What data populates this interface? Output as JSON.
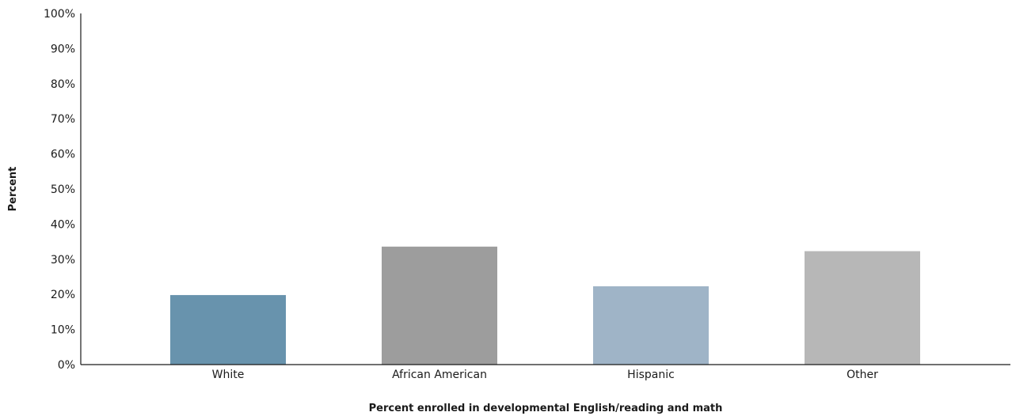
{
  "chart_data": {
    "type": "bar",
    "categories": [
      "White",
      "African American",
      "Hispanic",
      "Other"
    ],
    "values": [
      19.8,
      33.6,
      22.3,
      32.3
    ],
    "colors": [
      "#6893ad",
      "#9d9d9d",
      "#9fb4c7",
      "#b7b7b7"
    ],
    "xlabel": "Percent enrolled in developmental English/reading and math",
    "ylabel": "Percent",
    "ylim": [
      0,
      100
    ],
    "yticks": [
      "0%",
      "10%",
      "20%",
      "30%",
      "40%",
      "50%",
      "60%",
      "70%",
      "80%",
      "90%",
      "100%"
    ],
    "grid": false,
    "legend": "none"
  }
}
